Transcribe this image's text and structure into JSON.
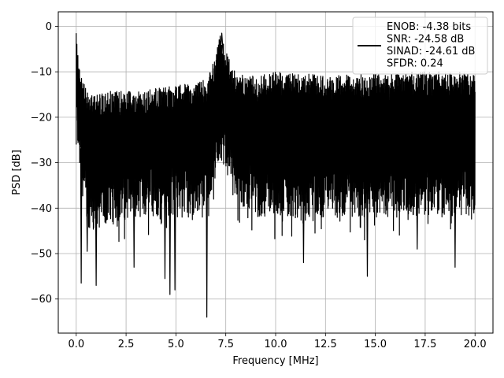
{
  "chart_data": {
    "type": "line",
    "xlabel": "Frequency [MHz]",
    "ylabel": "PSD [dB]",
    "xlim": [
      -0.9,
      20.9
    ],
    "ylim": [
      -67.5,
      3.2
    ],
    "xticks": [
      0.0,
      2.5,
      5.0,
      7.5,
      10.0,
      12.5,
      15.0,
      17.5,
      20.0
    ],
    "xtick_labels": [
      "0.0",
      "2.5",
      "5.0",
      "7.5",
      "10.0",
      "12.5",
      "15.0",
      "17.5",
      "20.0"
    ],
    "yticks": [
      0,
      -10,
      -20,
      -30,
      -40,
      -50,
      -60
    ],
    "ytick_labels": [
      "0",
      "−10",
      "−20",
      "−30",
      "−40",
      "−50",
      "−60"
    ],
    "grid": true,
    "legend_placement": "top-right",
    "series": [
      {
        "name": "ENOB: -4.38 bits\nSNR: -24.58 dB\nSINAD: -24.61 dB\nSFDR: 0.24",
        "color": "#000000",
        "envelope": {
          "x": [
            0.0,
            0.2,
            0.5,
            1.0,
            2.0,
            3.0,
            4.0,
            5.0,
            6.0,
            6.6,
            7.0,
            7.2,
            7.4,
            8.0,
            9.0,
            10.0,
            11.0,
            12.0,
            13.0,
            14.0,
            15.0,
            16.0,
            17.0,
            18.0,
            19.0,
            20.0
          ],
          "upper": [
            -1.5,
            -10.0,
            -14.0,
            -15.0,
            -14.0,
            -14.5,
            -13.5,
            -13.0,
            -12.5,
            -11.5,
            -6.0,
            -1.5,
            -4.0,
            -10.5,
            -11.0,
            -10.0,
            -10.0,
            -10.5,
            -10.5,
            -10.5,
            -10.5,
            -10.5,
            -10.0,
            -10.0,
            -10.0,
            -10.0
          ],
          "lower": [
            -24.0,
            -33.0,
            -44.0,
            -45.0,
            -43.0,
            -42.0,
            -42.0,
            -42.0,
            -42.0,
            -38.0,
            -34.0,
            -30.0,
            -32.0,
            -38.0,
            -42.0,
            -42.0,
            -42.0,
            -42.0,
            -42.0,
            -42.0,
            -42.0,
            -42.0,
            -42.0,
            -42.0,
            -42.0,
            -42.0
          ]
        },
        "notable_dips": [
          {
            "x": 0.25,
            "y": -56.5
          },
          {
            "x": 0.55,
            "y": -49.5
          },
          {
            "x": 1.0,
            "y": -57.0
          },
          {
            "x": 2.9,
            "y": -53.0
          },
          {
            "x": 4.45,
            "y": -55.5
          },
          {
            "x": 4.7,
            "y": -59.0
          },
          {
            "x": 4.95,
            "y": -58.0
          },
          {
            "x": 6.55,
            "y": -64.0
          },
          {
            "x": 11.4,
            "y": -52.0
          },
          {
            "x": 14.6,
            "y": -55.0
          },
          {
            "x": 17.1,
            "y": -49.0
          },
          {
            "x": 19.0,
            "y": -53.0
          }
        ],
        "peak": {
          "x": 7.3,
          "y": -1.5
        },
        "dc_spike": {
          "x": 0.0,
          "y": -1.5
        }
      }
    ]
  }
}
